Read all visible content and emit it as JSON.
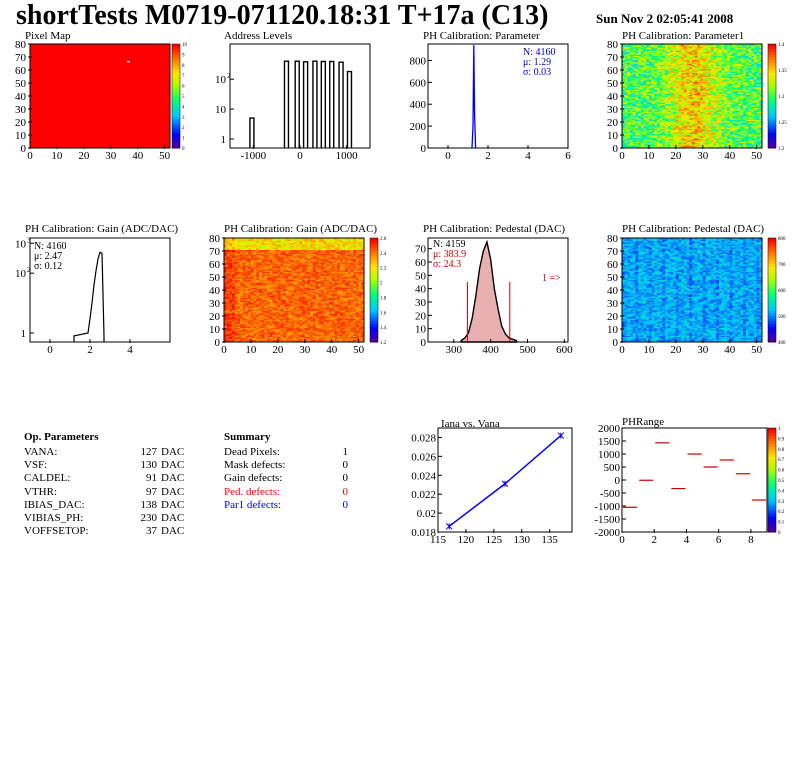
{
  "header": {
    "title": "shortTests M0719-071120.18:31 T+17a (C13)",
    "datetime": "Sun Nov  2 02:05:41 2008"
  },
  "panels": {
    "pixel_map": {
      "title": "Pixel Map",
      "xticks": [
        "0",
        "10",
        "20",
        "30",
        "40",
        "50"
      ],
      "yticks": [
        "0",
        "10",
        "20",
        "30",
        "40",
        "50",
        "60",
        "70",
        "80"
      ],
      "scale": [
        "10",
        "9",
        "8",
        "7",
        "6",
        "5",
        "4",
        "3",
        "2",
        "1",
        "0"
      ]
    },
    "address_levels": {
      "title": "Address Levels",
      "xticks": [
        "-1000",
        "0",
        "1000"
      ],
      "yticks": [
        "1",
        "10",
        "10"
      ],
      "ysup": "2"
    },
    "ph_param": {
      "title": "PH Calibration: Parameter",
      "xticks": [
        "0",
        "2",
        "4",
        "6"
      ],
      "yticks": [
        "0",
        "200",
        "400",
        "600",
        "800"
      ],
      "stats": [
        "N: 4160",
        "μ: 1.29",
        "σ: 0.03"
      ]
    },
    "ph_param1": {
      "title": "PH Calibration: Parameter1",
      "xticks": [
        "0",
        "10",
        "20",
        "30",
        "40",
        "50"
      ],
      "yticks": [
        "0",
        "10",
        "20",
        "30",
        "40",
        "50",
        "60",
        "70",
        "80"
      ],
      "scale": [
        "1.4",
        "1.35",
        "1.3",
        "1.25",
        "1.2"
      ]
    },
    "gain_hist": {
      "title": "PH Calibration: Gain (ADC/DAC)",
      "xticks": [
        "0",
        "2",
        "4"
      ],
      "yticks": [
        "1",
        "10",
        "10"
      ],
      "ysup": [
        "3",
        "2"
      ],
      "stats": [
        "N: 4160",
        "μ: 2.47",
        "σ: 0.12"
      ]
    },
    "gain_map": {
      "title": "PH Calibration: Gain (ADC/DAC)",
      "xticks": [
        "0",
        "10",
        "20",
        "30",
        "40",
        "50"
      ],
      "yticks": [
        "0",
        "10",
        "20",
        "30",
        "40",
        "50",
        "60",
        "70",
        "80"
      ],
      "scale": [
        "2.6",
        "2.4",
        "2.2",
        "2",
        "1.8",
        "1.6",
        "1.4",
        "1.2"
      ]
    },
    "ped_hist": {
      "title": "PH Calibration: Pedestal (DAC)",
      "xticks": [
        "300",
        "400",
        "500",
        "600"
      ],
      "yticks": [
        "0",
        "10",
        "20",
        "30",
        "40",
        "50",
        "60",
        "70"
      ],
      "stats": [
        "N: 4159",
        "μ: 383.9",
        "σ: 24.3"
      ],
      "arrow": "1 =>"
    },
    "ped_map": {
      "title": "PH Calibration: Pedestal (DAC)",
      "xticks": [
        "0",
        "10",
        "20",
        "30",
        "40",
        "50"
      ],
      "yticks": [
        "0",
        "10",
        "20",
        "30",
        "40",
        "50",
        "60",
        "70",
        "80"
      ],
      "scale": [
        "800",
        "700",
        "600",
        "500",
        "400"
      ]
    },
    "iana": {
      "title": "Iana vs. Vana",
      "xticks": [
        "115",
        "120",
        "125",
        "130",
        "135"
      ],
      "yticks": [
        "0.018",
        "0.02",
        "0.022",
        "0.024",
        "0.026",
        "0.028"
      ]
    },
    "phrange": {
      "title": "PHRange",
      "xticks": [
        "0",
        "2",
        "4",
        "6",
        "8"
      ],
      "yticks": [
        "2000",
        "1500",
        "1000",
        "500",
        "0",
        "-500",
        "-1000",
        "-1500",
        "-2000"
      ],
      "scale": [
        "1",
        "0.9",
        "0.8",
        "0.7",
        "0.6",
        "0.5",
        "0.4",
        "0.3",
        "0.2",
        "0.1",
        "0"
      ]
    }
  },
  "op_parameters": {
    "title": "Op. Parameters",
    "rows": [
      {
        "name": "VANA:",
        "value": "127",
        "unit": "DAC"
      },
      {
        "name": "VSF:",
        "value": "130",
        "unit": "DAC"
      },
      {
        "name": "CALDEL:",
        "value": "91",
        "unit": "DAC"
      },
      {
        "name": "VTHR:",
        "value": "97",
        "unit": "DAC"
      },
      {
        "name": "IBIAS_DAC:",
        "value": "138",
        "unit": "DAC"
      },
      {
        "name": "VIBIAS_PH:",
        "value": "230",
        "unit": "DAC"
      },
      {
        "name": "VOFFSETOP:",
        "value": "37",
        "unit": "DAC"
      }
    ]
  },
  "summary": {
    "title": "Summary",
    "rows": [
      {
        "name": "Dead Pixels:",
        "value": "1",
        "color": "#000000"
      },
      {
        "name": "Mask defects:",
        "value": "0",
        "color": "#000000"
      },
      {
        "name": "Gain defects:",
        "value": "0",
        "color": "#000000"
      },
      {
        "name": "Ped. defects:",
        "value": "0",
        "color": "#ff0000"
      },
      {
        "name": "Par1 defects:",
        "value": "0",
        "color": "#0000ff"
      }
    ]
  },
  "chart_data": [
    {
      "type": "heatmap",
      "title": "Pixel Map",
      "xlim": [
        0,
        52
      ],
      "ylim": [
        0,
        80
      ],
      "zlim": [
        0,
        10
      ],
      "uniform_value": 10,
      "dead_pixels": [
        {
          "x": 36,
          "y": 67
        }
      ]
    },
    {
      "type": "bar",
      "title": "Address Levels",
      "xlim": [
        -1500,
        1500
      ],
      "log_y": true,
      "peaks_x": [
        -1030,
        -290,
        -60,
        120,
        320,
        500,
        680,
        880,
        1060
      ],
      "peaks_y": [
        5,
        400,
        400,
        380,
        400,
        390,
        390,
        370,
        180
      ]
    },
    {
      "type": "bar",
      "title": "PH Calibration: Parameter",
      "xlim": [
        -1,
        6
      ],
      "ylim": [
        0,
        950
      ],
      "peak_x": 1.29,
      "peak_y": 940,
      "color": "#0000ff"
    },
    {
      "type": "heatmap",
      "title": "PH Calibration: Parameter1",
      "xlim": [
        0,
        52
      ],
      "ylim": [
        0,
        80
      ],
      "zlim": [
        1.15,
        1.42
      ]
    },
    {
      "type": "bar",
      "title": "PH Calibration: Gain (ADC/DAC)",
      "xlim": [
        -1,
        6
      ],
      "log_y": true,
      "x": [
        1.2,
        1.9,
        2.0,
        2.1,
        2.2,
        2.3,
        2.4,
        2.5,
        2.6,
        2.7
      ],
      "y": [
        0.8,
        1,
        3,
        10,
        40,
        120,
        300,
        500,
        460,
        0.8
      ]
    },
    {
      "type": "heatmap",
      "title": "PH Calibration: Gain (ADC/DAC)",
      "xlim": [
        0,
        52
      ],
      "ylim": [
        0,
        80
      ],
      "zlim": [
        1.1,
        2.7
      ]
    },
    {
      "type": "bar",
      "title": "PH Calibration: Pedestal (DAC)",
      "xlim": [
        230,
        610
      ],
      "ylim": [
        0,
        78
      ],
      "x": [
        320,
        330,
        340,
        350,
        360,
        370,
        380,
        390,
        400,
        410,
        420,
        430,
        440,
        450,
        460,
        470
      ],
      "y": [
        1,
        3,
        7,
        18,
        35,
        55,
        68,
        75,
        62,
        40,
        25,
        12,
        6,
        3,
        2,
        1
      ],
      "cut_lines": [
        337,
        452
      ],
      "fill": "#e8b0b0"
    },
    {
      "type": "heatmap",
      "title": "PH Calibration: Pedestal (DAC)",
      "xlim": [
        0,
        52
      ],
      "ylim": [
        0,
        80
      ],
      "zlim": [
        350,
        820
      ]
    },
    {
      "type": "line",
      "title": "Iana vs. Vana",
      "xlim": [
        115,
        139
      ],
      "ylim": [
        0.018,
        0.029
      ],
      "x": [
        117,
        127,
        137
      ],
      "y": [
        0.0186,
        0.0231,
        0.0282
      ],
      "color": "#0000ff"
    },
    {
      "type": "scatter",
      "title": "PHRange",
      "xlim": [
        0,
        9
      ],
      "ylim": [
        -2000,
        2000
      ],
      "x": [
        0.5,
        1.5,
        2.5,
        3.5,
        4.5,
        5.5,
        6.5,
        7.5,
        8.5
      ],
      "y": [
        -1050,
        -10,
        1430,
        -330,
        1000,
        500,
        770,
        240,
        -770
      ],
      "color": "#cc0000"
    }
  ]
}
